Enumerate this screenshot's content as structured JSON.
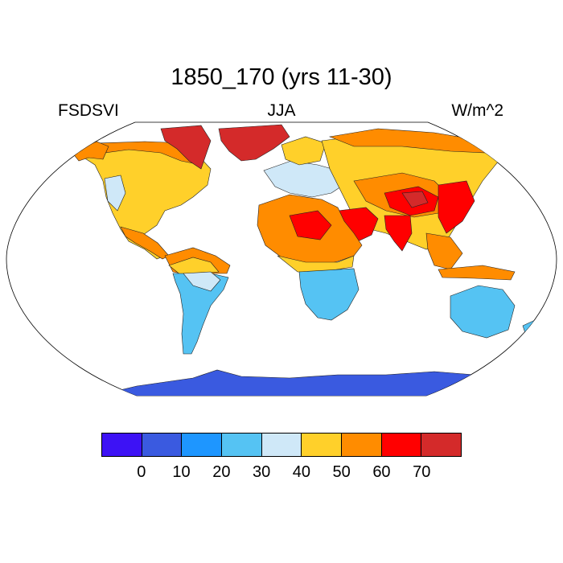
{
  "title": "1850_170 (yrs 11-30)",
  "labels": {
    "left": "FSDSVI",
    "center": "JJA",
    "right": "W/m^2"
  },
  "colorbar": {
    "colors": [
      "#3d12f5",
      "#3a5ae0",
      "#1e96ff",
      "#55c3f3",
      "#cfe8f8",
      "#ffd02a",
      "#ff8c00",
      "#ff0000",
      "#d42a2a"
    ],
    "tick_labels": [
      "0",
      "10",
      "20",
      "30",
      "40",
      "50",
      "60",
      "70"
    ]
  },
  "chart_data": {
    "type": "heatmap",
    "projection": "robinson",
    "variable": "FSDSVI",
    "season": "JJA",
    "units": "W/m^2",
    "levels": [
      0,
      10,
      20,
      30,
      40,
      50,
      60,
      70
    ],
    "regions": [
      {
        "region": "Antarctica",
        "level": "0-10"
      },
      {
        "region": "Australia",
        "level": "20-30"
      },
      {
        "region": "Southern Africa",
        "level": "20-30"
      },
      {
        "region": "South America (south)",
        "level": "20-30"
      },
      {
        "region": "Northern Africa",
        "level": "50-60"
      },
      {
        "region": "Arabian Peninsula",
        "level": "60-70"
      },
      {
        "region": "Tibetan Plateau",
        "level": "70+"
      },
      {
        "region": "Greenland",
        "level": "70+"
      },
      {
        "region": "Siberia",
        "level": "40-50"
      },
      {
        "region": "Central Asia",
        "level": "50-60"
      },
      {
        "region": "North America",
        "level": "40-50"
      },
      {
        "region": "Europe",
        "level": "30-40"
      }
    ]
  }
}
